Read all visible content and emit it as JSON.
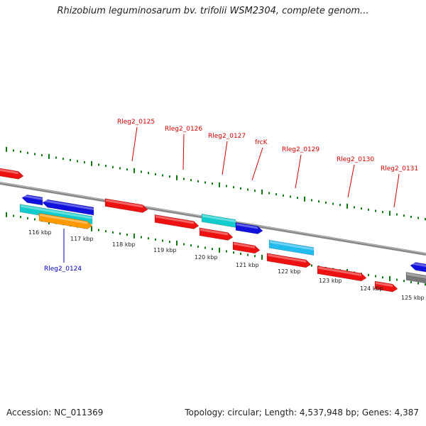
{
  "title": "Rhizobium leguminosarum bv. trifolii WSM2304, complete genom...",
  "footer": {
    "accession": "Accession: NC_011369",
    "summary": "Topology: circular; Length: 4,537,948 bp; Genes: 4,387"
  },
  "colors": {
    "red": "#ee1111",
    "blue": "#1111dd",
    "cyan": "#11cccc",
    "sky": "#22bbee",
    "orange": "#ff9900",
    "gray": "#777777",
    "tick": "#117711",
    "label_red": "#cc0000",
    "label_blue": "#0000bb"
  },
  "scale": {
    "ticks": [
      {
        "label": "116 kbp"
      },
      {
        "label": "117 kbp"
      },
      {
        "label": "118 kbp"
      },
      {
        "label": "119 kbp"
      },
      {
        "label": "120 kbp"
      },
      {
        "label": "121 kbp"
      },
      {
        "label": "122 kbp"
      },
      {
        "label": "123 kbp"
      },
      {
        "label": "124 kbp"
      },
      {
        "label": "125 kbp"
      }
    ]
  },
  "gene_labels": [
    {
      "text": "Rleg2_0124",
      "color": "blue"
    },
    {
      "text": "Rleg2_0125",
      "color": "red"
    },
    {
      "text": "Rleg2_0126",
      "color": "red"
    },
    {
      "text": "Rleg2_0127",
      "color": "red"
    },
    {
      "text": "frcK",
      "color": "red"
    },
    {
      "text": "Rleg2_0129",
      "color": "red"
    },
    {
      "text": "Rleg2_0130",
      "color": "red"
    },
    {
      "text": "Rleg2_0131",
      "color": "red"
    }
  ]
}
